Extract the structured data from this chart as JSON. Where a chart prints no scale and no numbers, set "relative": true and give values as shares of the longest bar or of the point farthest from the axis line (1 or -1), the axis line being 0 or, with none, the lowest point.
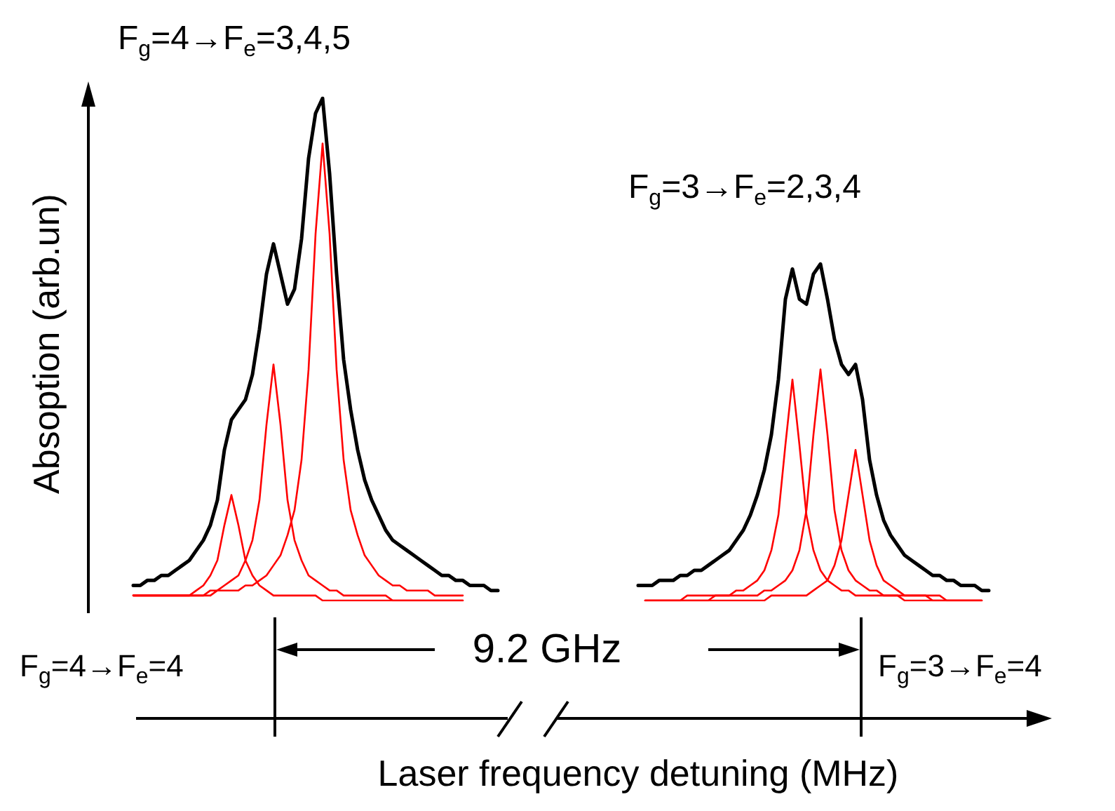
{
  "chart_data": {
    "type": "line",
    "relative": true,
    "xlabel": "Laser frequency detuning (MHz)",
    "ylabel": "Absoption (arb.un)",
    "annotations": [
      "F$_{g}$=4→F$_{e}$=3,4,5",
      "F$_{g}$=3→F$_{e}$=2,3,4",
      "F$_{g}$=4→F$_{e}$=4",
      "9.2 GHz",
      "F$_{g}$=3→F$_{e}$=4"
    ],
    "categories": [
      null,
      null,
      null,
      null,
      null,
      null,
      null,
      null,
      null,
      null,
      null,
      null,
      null,
      null,
      null,
      null,
      null,
      null,
      null,
      null,
      null,
      null,
      null,
      null,
      null,
      null,
      null,
      null,
      null,
      null,
      null,
      null,
      null,
      null,
      null,
      null,
      null,
      null,
      null,
      null,
      null,
      null,
      null,
      null,
      null,
      null,
      null,
      null,
      null,
      null,
      null,
      null,
      null,
      null,
      null,
      null,
      null,
      null,
      null,
      null,
      null,
      null,
      null,
      null,
      null,
      null,
      null,
      null,
      null,
      null,
      null,
      null,
      null,
      null,
      null,
      null,
      null,
      null,
      null,
      null,
      null,
      null,
      null,
      null,
      null,
      null,
      null,
      null,
      null,
      null,
      null,
      null,
      null,
      null,
      null,
      null,
      null,
      null,
      null,
      null,
      null,
      null,
      null,
      null,
      null,
      null,
      null,
      null,
      null,
      null,
      null,
      null,
      null,
      null,
      null,
      null,
      null,
      null,
      null,
      null,
      null,
      null,
      null
    ],
    "series": [
      {
        "color": "#ff0000",
        "values": [
          0.01,
          0.01,
          0.01,
          0.01,
          0.01,
          0.01,
          0.01,
          0.01,
          0.01,
          0.02,
          0.03,
          0.05,
          0.08,
          0.15,
          0.21,
          0.15,
          0.08,
          0.05,
          0.03,
          0.02,
          0.01,
          0.01,
          0.01,
          0.01,
          0.01,
          0.01,
          0.01,
          0,
          0,
          0,
          0,
          0,
          0,
          0,
          0,
          0,
          0,
          0,
          0,
          0,
          0,
          0,
          0,
          0,
          0,
          0,
          0,
          0,
          null,
          null,
          null,
          null,
          null,
          null,
          null,
          null,
          null,
          null,
          null,
          null,
          null,
          null,
          null,
          null,
          null,
          null,
          null,
          null,
          null,
          null,
          null,
          null,
          null,
          null,
          null,
          null,
          null,
          null,
          null,
          null,
          null,
          null,
          null,
          null,
          null,
          null,
          null,
          null,
          null,
          null,
          null,
          null,
          null,
          null,
          null,
          null,
          null,
          null,
          null,
          null,
          null,
          null,
          null,
          null,
          null,
          null,
          null,
          null,
          null,
          null,
          null,
          null,
          null,
          null,
          null,
          null,
          null,
          null,
          null,
          null,
          null,
          null,
          null
        ]
      },
      {
        "color": "#ff0000",
        "values": [
          0.01,
          0.01,
          0.01,
          0.01,
          0.01,
          0.01,
          0.01,
          0.01,
          0.01,
          0.01,
          0.01,
          0.02,
          0.02,
          0.03,
          0.04,
          0.05,
          0.08,
          0.12,
          0.2,
          0.35,
          0.47,
          0.35,
          0.2,
          0.12,
          0.08,
          0.05,
          0.04,
          0.03,
          0.02,
          0.02,
          0.01,
          0.01,
          0.01,
          0.01,
          0.01,
          0.01,
          0.01,
          0,
          0,
          0,
          0,
          0,
          0,
          0,
          0,
          0,
          0,
          0,
          null,
          null,
          null,
          null,
          null,
          null,
          null,
          null,
          null,
          null,
          null,
          null,
          null,
          null,
          null,
          null,
          null,
          null,
          null,
          null,
          null,
          null,
          null,
          null,
          null,
          null,
          null,
          null,
          null,
          null,
          null,
          null,
          null,
          null,
          null,
          null,
          null,
          null,
          null,
          null,
          null,
          null,
          null,
          null,
          null,
          null,
          null,
          null,
          null,
          null,
          null,
          null,
          null,
          null,
          null,
          null,
          null,
          null,
          null,
          null,
          null,
          null,
          null,
          null,
          null,
          null,
          null,
          null,
          null,
          null,
          null,
          null,
          null,
          null,
          null
        ]
      },
      {
        "color": "#ff0000",
        "values": [
          0.01,
          0.01,
          0.01,
          0.01,
          0.01,
          0.01,
          0.01,
          0.01,
          0.01,
          0.01,
          0.01,
          0.01,
          0.02,
          0.02,
          0.02,
          0.02,
          0.03,
          0.03,
          0.04,
          0.05,
          0.07,
          0.09,
          0.13,
          0.18,
          0.28,
          0.46,
          0.73,
          0.91,
          0.73,
          0.46,
          0.28,
          0.18,
          0.13,
          0.09,
          0.07,
          0.05,
          0.04,
          0.03,
          0.03,
          0.02,
          0.02,
          0.02,
          0.02,
          0.01,
          0.01,
          0.01,
          0.01,
          0.01,
          null,
          null,
          null,
          null,
          null,
          null,
          null,
          null,
          null,
          null,
          null,
          null,
          null,
          null,
          null,
          null,
          null,
          null,
          null,
          null,
          null,
          null,
          null,
          null,
          null,
          null,
          null,
          null,
          null,
          null,
          null,
          null,
          null,
          null,
          null,
          null,
          null,
          null,
          null,
          null,
          null,
          null,
          null,
          null,
          null,
          null,
          null,
          null,
          null,
          null,
          null,
          null,
          null,
          null,
          null,
          null,
          null,
          null,
          null,
          null,
          null,
          null,
          null,
          null,
          null,
          null,
          null,
          null,
          null,
          null,
          null,
          null,
          null,
          null,
          null
        ]
      },
      {
        "color": "#ff0000",
        "values": [
          null,
          null,
          null,
          null,
          null,
          null,
          null,
          null,
          null,
          null,
          null,
          null,
          null,
          null,
          null,
          null,
          null,
          null,
          null,
          null,
          null,
          null,
          null,
          null,
          null,
          null,
          null,
          null,
          null,
          null,
          null,
          null,
          null,
          null,
          null,
          null,
          null,
          null,
          null,
          null,
          null,
          null,
          null,
          null,
          null,
          null,
          null,
          null,
          null,
          null,
          null,
          null,
          null,
          null,
          null,
          null,
          null,
          null,
          null,
          null,
          null,
          null,
          null,
          null,
          null,
          null,
          null,
          null,
          null,
          null,
          null,
          null,
          null,
          0,
          0,
          0,
          0,
          0,
          0,
          0.01,
          0.01,
          0.01,
          0.01,
          0.01,
          0.01,
          0.01,
          0.02,
          0.02,
          0.03,
          0.04,
          0.06,
          0.1,
          0.17,
          0.31,
          0.44,
          0.31,
          0.17,
          0.1,
          0.06,
          0.04,
          0.03,
          0.02,
          0.02,
          0.01,
          0.01,
          0.01,
          0.01,
          0.01,
          0.01,
          0.01,
          0,
          0,
          0,
          0,
          0,
          0,
          0,
          0,
          0,
          0,
          0,
          0,
          null
        ]
      },
      {
        "color": "#ff0000",
        "values": [
          null,
          null,
          null,
          null,
          null,
          null,
          null,
          null,
          null,
          null,
          null,
          null,
          null,
          null,
          null,
          null,
          null,
          null,
          null,
          null,
          null,
          null,
          null,
          null,
          null,
          null,
          null,
          null,
          null,
          null,
          null,
          null,
          null,
          null,
          null,
          null,
          null,
          null,
          null,
          null,
          null,
          null,
          null,
          null,
          null,
          null,
          null,
          null,
          null,
          null,
          null,
          null,
          null,
          null,
          null,
          null,
          null,
          null,
          null,
          null,
          null,
          null,
          null,
          null,
          null,
          null,
          null,
          null,
          null,
          null,
          null,
          null,
          null,
          0,
          0,
          0,
          0,
          0,
          0,
          0,
          0,
          0,
          0,
          0.01,
          0.01,
          0.01,
          0.01,
          0.01,
          0.01,
          0.01,
          0.02,
          0.02,
          0.03,
          0.04,
          0.06,
          0.1,
          0.18,
          0.33,
          0.46,
          0.33,
          0.18,
          0.1,
          0.06,
          0.04,
          0.03,
          0.02,
          0.02,
          0.01,
          0.01,
          0.01,
          0.01,
          0.01,
          0.01,
          0.01,
          0,
          0,
          0,
          0,
          0,
          0,
          0,
          0,
          null
        ]
      },
      {
        "color": "#ff0000",
        "values": [
          null,
          null,
          null,
          null,
          null,
          null,
          null,
          null,
          null,
          null,
          null,
          null,
          null,
          null,
          null,
          null,
          null,
          null,
          null,
          null,
          null,
          null,
          null,
          null,
          null,
          null,
          null,
          null,
          null,
          null,
          null,
          null,
          null,
          null,
          null,
          null,
          null,
          null,
          null,
          null,
          null,
          null,
          null,
          null,
          null,
          null,
          null,
          null,
          null,
          null,
          null,
          null,
          null,
          null,
          null,
          null,
          null,
          null,
          null,
          null,
          null,
          null,
          null,
          null,
          null,
          null,
          null,
          null,
          null,
          null,
          null,
          null,
          null,
          0,
          0,
          0,
          0,
          0,
          0,
          0,
          0,
          0,
          0,
          0,
          0,
          0,
          0,
          0,
          0,
          0,
          0,
          0.01,
          0.01,
          0.01,
          0.01,
          0.01,
          0.01,
          0.02,
          0.03,
          0.04,
          0.07,
          0.12,
          0.21,
          0.3,
          0.21,
          0.12,
          0.07,
          0.04,
          0.03,
          0.02,
          0.01,
          0.01,
          0.01,
          0.01,
          0.01,
          0.01,
          0,
          0,
          0,
          0,
          0,
          0,
          null
        ]
      },
      {
        "color": "#000000",
        "values": [
          0.03,
          0.03,
          0.04,
          0.04,
          0.05,
          0.05,
          0.06,
          0.07,
          0.08,
          0.1,
          0.12,
          0.15,
          0.2,
          0.3,
          0.36,
          0.38,
          0.4,
          0.45,
          0.54,
          0.65,
          0.71,
          0.65,
          0.59,
          0.62,
          0.72,
          0.88,
          0.97,
          1.0,
          0.85,
          0.65,
          0.48,
          0.38,
          0.3,
          0.24,
          0.2,
          0.17,
          0.14,
          0.12,
          0.11,
          0.1,
          0.09,
          0.08,
          0.07,
          0.06,
          0.05,
          0.05,
          0.04,
          0.04,
          0.03,
          0.03,
          0.03,
          0.02,
          0.02,
          null,
          null,
          null,
          null,
          null,
          null,
          null,
          null,
          null,
          null,
          null,
          null,
          null,
          null,
          null,
          null,
          null,
          null,
          null,
          0.03,
          0.03,
          0.03,
          0.04,
          0.04,
          0.04,
          0.05,
          0.05,
          0.06,
          0.06,
          0.07,
          0.08,
          0.09,
          0.1,
          0.12,
          0.14,
          0.17,
          0.21,
          0.26,
          0.33,
          0.44,
          0.6,
          0.66,
          0.6,
          0.59,
          0.65,
          0.67,
          0.6,
          0.52,
          0.47,
          0.45,
          0.47,
          0.4,
          0.28,
          0.21,
          0.16,
          0.13,
          0.11,
          0.09,
          0.08,
          0.07,
          0.06,
          0.05,
          0.05,
          0.04,
          0.04,
          0.03,
          0.03,
          0.03,
          0.02,
          0.02
        ]
      }
    ]
  }
}
